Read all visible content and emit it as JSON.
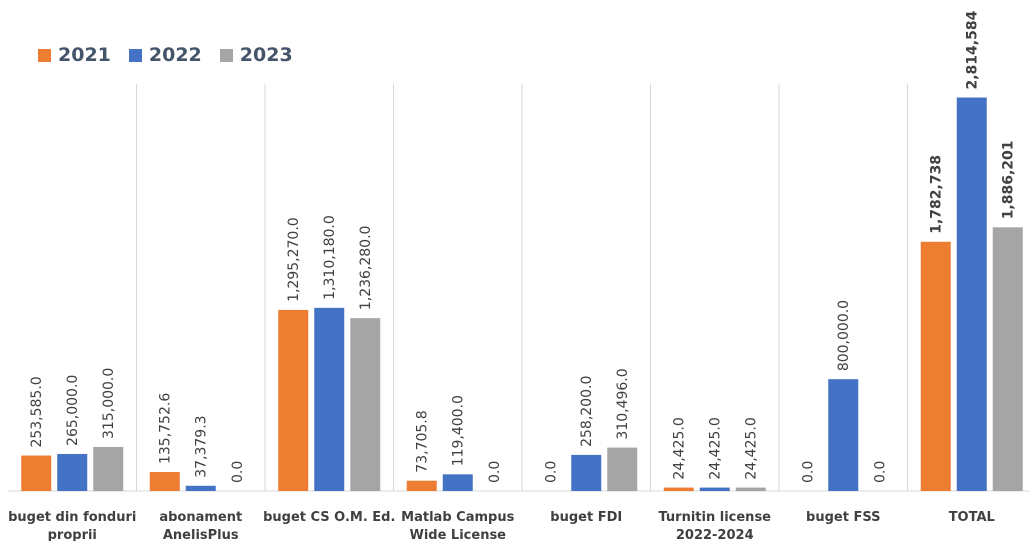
{
  "chart_data": {
    "type": "bar",
    "categories": [
      [
        "buget din fonduri",
        "proprii"
      ],
      [
        "abonament",
        "AnelisPlus"
      ],
      [
        "buget CS O.M. Ed."
      ],
      [
        "Matlab Campus",
        "Wide License"
      ],
      [
        "buget FDI"
      ],
      [
        "Turnitin license",
        "2022-2024"
      ],
      [
        "buget FSS"
      ],
      [
        "TOTAL"
      ]
    ],
    "series": [
      {
        "name": "2021",
        "color": "#ed7d31",
        "values": [
          253585.0,
          135752.6,
          1295270.0,
          73705.8,
          0.0,
          24425.0,
          0.0,
          1782738
        ]
      },
      {
        "name": "2022",
        "color": "#4472c4",
        "values": [
          265000.0,
          37379.3,
          1310180.0,
          119400.0,
          258200.0,
          24425.0,
          800000.0,
          2814584
        ]
      },
      {
        "name": "2023",
        "color": "#a5a5a5",
        "values": [
          315000.0,
          0.0,
          1236280.0,
          0.0,
          310496.0,
          24425.0,
          0.0,
          1886201
        ]
      }
    ],
    "labels": [
      [
        "253,585.0",
        "265,000.0",
        "315,000.0"
      ],
      [
        "135,752.6",
        "37,379.3",
        "0.0"
      ],
      [
        "1,295,270.0",
        "1,310,180.0",
        "1,236,280.0"
      ],
      [
        "73,705.8",
        "119,400.0",
        "0.0"
      ],
      [
        "0.0",
        "258,200.0",
        "310,496.0"
      ],
      [
        "24,425.0",
        "24,425.0",
        "24,425.0"
      ],
      [
        "0.0",
        "800,000.0",
        "0.0"
      ],
      [
        "1,782,738",
        "2,814,584",
        "1,886,201"
      ]
    ],
    "ylim": [
      0,
      3000000
    ],
    "legend_position": "top-left"
  }
}
